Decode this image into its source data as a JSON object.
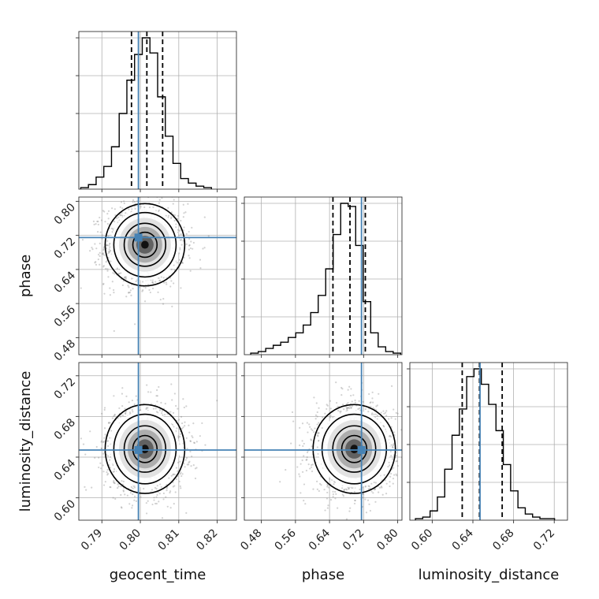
{
  "chart_data": {
    "type": "corner",
    "colors": {
      "truth": "#4682b4",
      "hist": "#000000",
      "grid": "#b0b0b0",
      "points": "#7f7f7f"
    },
    "parameters": [
      {
        "name": "geocent_time",
        "label": "geocent_time",
        "range": [
          0.784,
          0.825
        ],
        "ticks": [
          "0.79",
          "0.80",
          "0.81",
          "0.82"
        ],
        "tick_values": [
          0.79,
          0.8,
          0.81,
          0.82
        ],
        "truth": 0.7995,
        "quantiles": [
          0.7977,
          0.8017,
          0.8058
        ],
        "hist": {
          "bin_start": 0.7845,
          "bin_width": 0.002,
          "counts": [
            0.01,
            0.03,
            0.08,
            0.15,
            0.28,
            0.5,
            0.72,
            0.89,
            1.0,
            0.9,
            0.61,
            0.35,
            0.17,
            0.07,
            0.04,
            0.02,
            0.01
          ]
        }
      },
      {
        "name": "phase",
        "label": "phase",
        "range": [
          0.44,
          0.81
        ],
        "ticks": [
          "0.48",
          "0.56",
          "0.64",
          "0.72",
          "0.80"
        ],
        "tick_values": [
          0.48,
          0.56,
          0.64,
          0.72,
          0.8
        ],
        "truth": 0.715,
        "quantiles": [
          0.648,
          0.688,
          0.724
        ],
        "hist": {
          "bin_start": 0.455,
          "bin_width": 0.0176,
          "counts": [
            0.01,
            0.02,
            0.04,
            0.06,
            0.08,
            0.11,
            0.14,
            0.19,
            0.27,
            0.38,
            0.55,
            0.77,
            0.97,
            0.95,
            0.7,
            0.34,
            0.14,
            0.05,
            0.02,
            0.01
          ]
        }
      },
      {
        "name": "luminosity_distance",
        "label": "luminosity_distance",
        "range": [
          0.578,
          0.733
        ],
        "ticks": [
          "0.60",
          "0.64",
          "0.68",
          "0.72"
        ],
        "tick_values": [
          0.6,
          0.64,
          0.68,
          0.72
        ],
        "truth": 0.647,
        "quantiles": [
          0.6295,
          0.6465,
          0.6688
        ],
        "hist": {
          "bin_start": 0.5835,
          "bin_width": 0.0072,
          "counts": [
            0.01,
            0.02,
            0.06,
            0.15,
            0.33,
            0.55,
            0.72,
            0.93,
            0.98,
            0.88,
            0.75,
            0.58,
            0.36,
            0.19,
            0.08,
            0.04,
            0.02,
            0.01,
            0.01
          ]
        }
      }
    ],
    "pairs": [
      {
        "x": "geocent_time",
        "y": "phase",
        "mean": [
          0.8012,
          0.698
        ],
        "std": [
          0.0045,
          0.042
        ],
        "corr": 0.0
      },
      {
        "x": "geocent_time",
        "y": "luminosity_distance",
        "mean": [
          0.8012,
          0.648
        ],
        "std": [
          0.0045,
          0.019
        ],
        "corr": 0.0
      },
      {
        "x": "phase",
        "y": "luminosity_distance",
        "mean": [
          0.698,
          0.648
        ],
        "std": [
          0.042,
          0.019
        ],
        "corr": 0.0
      }
    ],
    "contour_levels_sigma": [
      0.5,
      1.0,
      1.5,
      2.0
    ],
    "grid": true
  }
}
